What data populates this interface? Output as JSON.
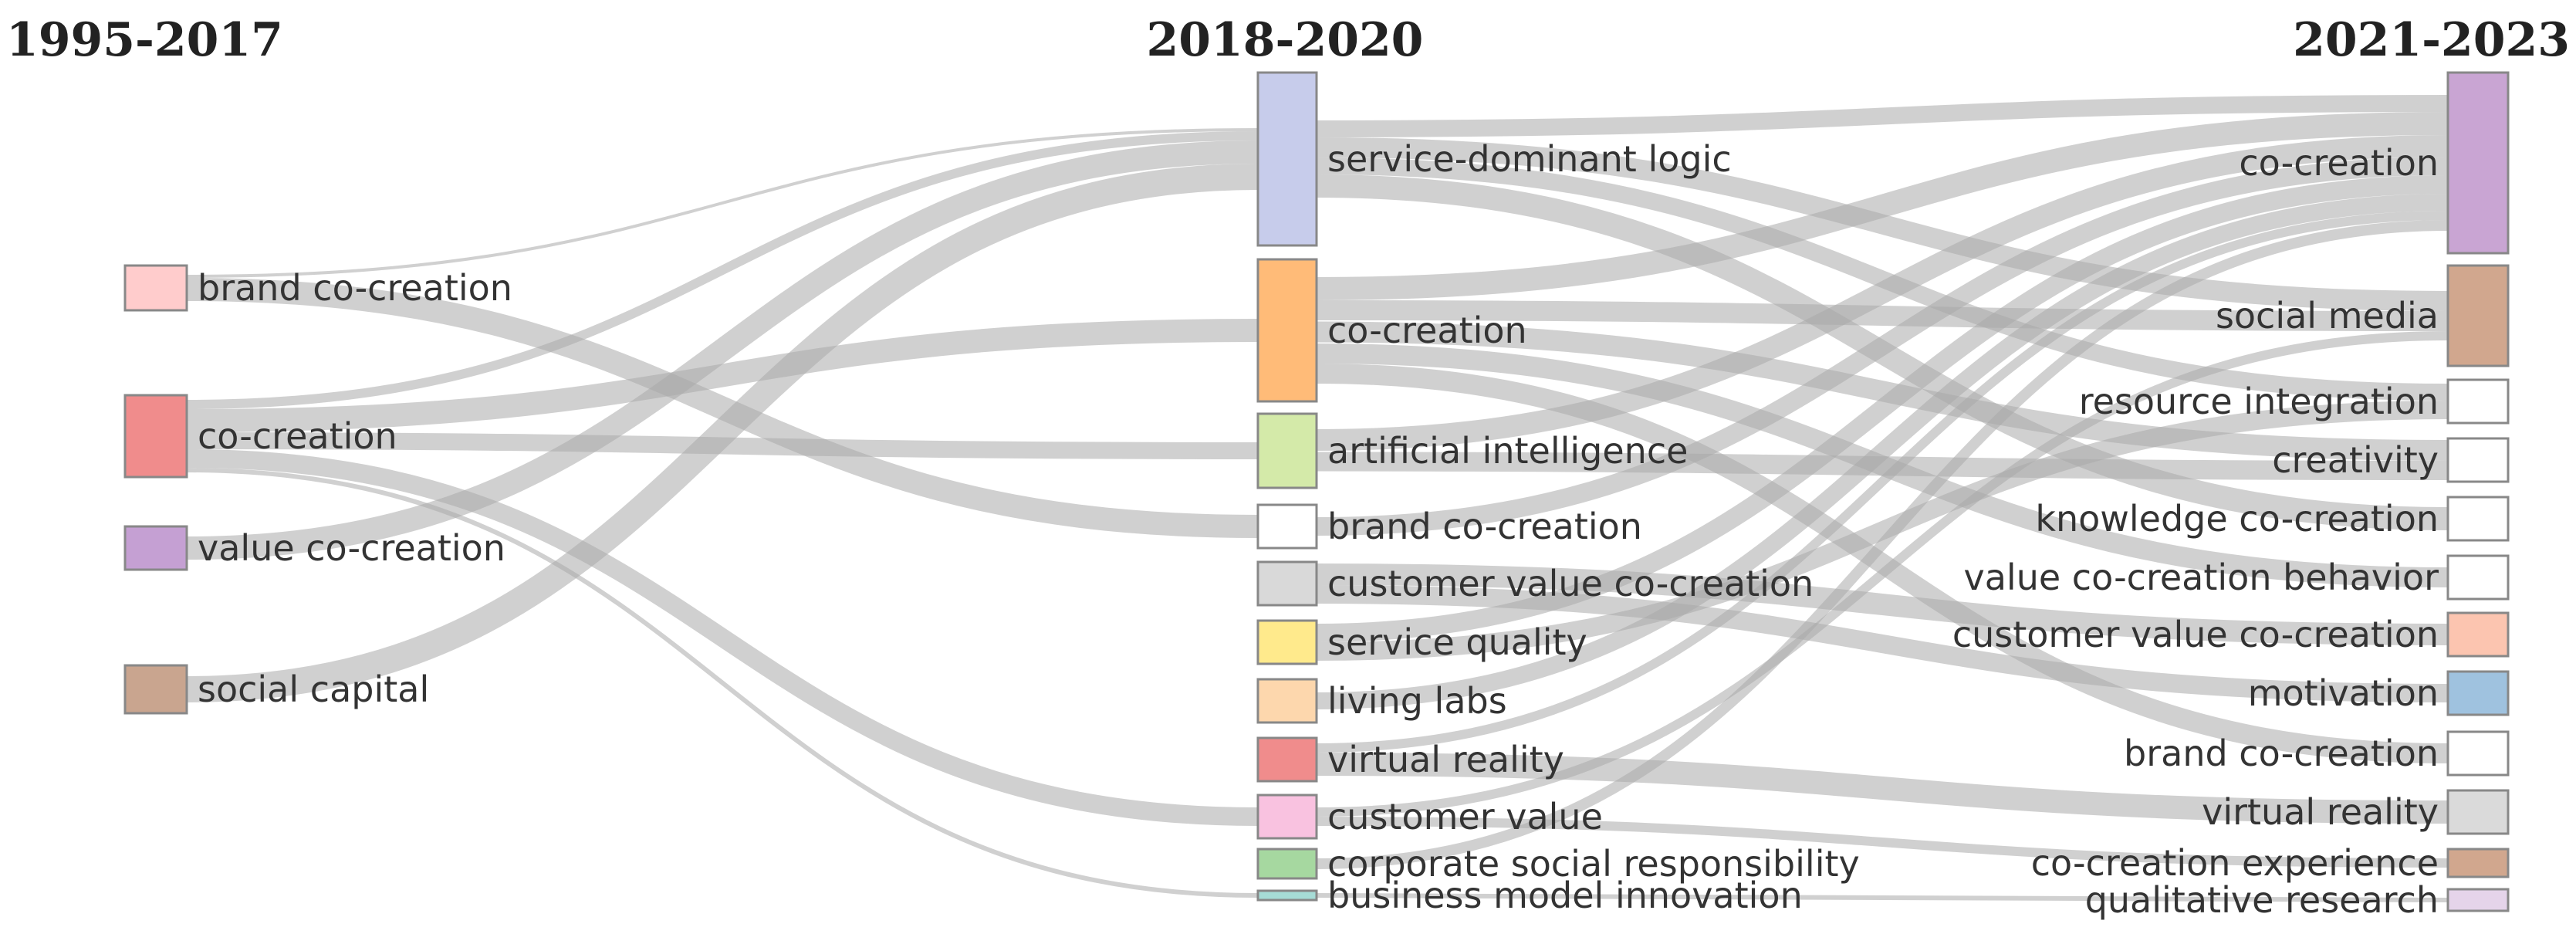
{
  "periods": [
    "1995-2017",
    "2018-2020",
    "2021-2023"
  ],
  "columns": [
    {
      "nodes": [
        {
          "id": "c0-brand",
          "label": "brand co-creation",
          "color": "#ffcccc"
        },
        {
          "id": "c0-cocreation",
          "label": "co-creation",
          "color": "#f08c8c"
        },
        {
          "id": "c0-vcc",
          "label": "value co-creation",
          "color": "#c5a0d3"
        },
        {
          "id": "c0-social",
          "label": "social capital",
          "color": "#c9a58f"
        }
      ]
    },
    {
      "nodes": [
        {
          "id": "c1-sdl",
          "label": "service-dominant logic",
          "color": "#c7cceb"
        },
        {
          "id": "c1-cocreation",
          "label": "co-creation",
          "color": "#ffbb78"
        },
        {
          "id": "c1-ai",
          "label": "artificial intelligence",
          "color": "#d4eaa9"
        },
        {
          "id": "c1-brand",
          "label": "brand co-creation",
          "color": "#ffffff"
        },
        {
          "id": "c1-cvcc",
          "label": "customer value co-creation",
          "color": "#d9d9d9"
        },
        {
          "id": "c1-sq",
          "label": "service quality",
          "color": "#ffea8c"
        },
        {
          "id": "c1-living",
          "label": "living labs",
          "color": "#fdd7ad"
        },
        {
          "id": "c1-vr",
          "label": "virtual reality",
          "color": "#f08c8c"
        },
        {
          "id": "c1-cv",
          "label": "customer value",
          "color": "#f9c2e0"
        },
        {
          "id": "c1-csr",
          "label": "corporate social responsibility",
          "color": "#a6d8a0"
        },
        {
          "id": "c1-bmi",
          "label": "business model innovation",
          "color": "#a6dcd6"
        }
      ]
    },
    {
      "nodes": [
        {
          "id": "c2-cocreation",
          "label": "co-creation",
          "color": "#c9a5d3"
        },
        {
          "id": "c2-sm",
          "label": "social media",
          "color": "#d1a78e"
        },
        {
          "id": "c2-ri",
          "label": "resource integration",
          "color": "#ffffff"
        },
        {
          "id": "c2-creativity",
          "label": "creativity",
          "color": "#ffffff"
        },
        {
          "id": "c2-kcc",
          "label": "knowledge co-creation",
          "color": "#ffffff"
        },
        {
          "id": "c2-vccb",
          "label": "value co-creation behavior",
          "color": "#ffffff"
        },
        {
          "id": "c2-cvcc",
          "label": "customer value co-creation",
          "color": "#fcc5b0"
        },
        {
          "id": "c2-motivation",
          "label": "motivation",
          "color": "#9fc2df"
        },
        {
          "id": "c2-brand",
          "label": "brand co-creation",
          "color": "#ffffff"
        },
        {
          "id": "c2-vr",
          "label": "virtual reality",
          "color": "#dadada"
        },
        {
          "id": "c2-cce",
          "label": "co-creation experience",
          "color": "#d1a78e"
        },
        {
          "id": "c2-qr",
          "label": "qualitative research",
          "color": "#e5d4ea"
        }
      ]
    }
  ],
  "flows": [
    {
      "from": "c0-brand",
      "to": "c1-sdl"
    },
    {
      "from": "c0-brand",
      "to": "c1-brand"
    },
    {
      "from": "c0-cocreation",
      "to": "c1-cocreation"
    },
    {
      "from": "c0-cocreation",
      "to": "c1-ai"
    },
    {
      "from": "c0-cocreation",
      "to": "c1-sdl"
    },
    {
      "from": "c0-cocreation",
      "to": "c1-cv"
    },
    {
      "from": "c0-cocreation",
      "to": "c1-bmi"
    },
    {
      "from": "c0-vcc",
      "to": "c1-sdl"
    },
    {
      "from": "c0-social",
      "to": "c1-sdl"
    },
    {
      "from": "c1-sdl",
      "to": "c2-cocreation"
    },
    {
      "from": "c1-sdl",
      "to": "c2-sm"
    },
    {
      "from": "c1-sdl",
      "to": "c2-kcc"
    },
    {
      "from": "c1-sdl",
      "to": "c2-ri"
    },
    {
      "from": "c1-cocreation",
      "to": "c2-cocreation"
    },
    {
      "from": "c1-cocreation",
      "to": "c2-sm"
    },
    {
      "from": "c1-cocreation",
      "to": "c2-creativity"
    },
    {
      "from": "c1-cocreation",
      "to": "c2-vccb"
    },
    {
      "from": "c1-cocreation",
      "to": "c2-brand"
    },
    {
      "from": "c1-ai",
      "to": "c2-cocreation"
    },
    {
      "from": "c1-ai",
      "to": "c2-creativity"
    },
    {
      "from": "c1-brand",
      "to": "c2-cocreation"
    },
    {
      "from": "c1-cvcc",
      "to": "c2-cvcc"
    },
    {
      "from": "c1-cvcc",
      "to": "c2-motivation"
    },
    {
      "from": "c1-sq",
      "to": "c2-cocreation"
    },
    {
      "from": "c1-sq",
      "to": "c2-ri"
    },
    {
      "from": "c1-living",
      "to": "c2-cocreation"
    },
    {
      "from": "c1-vr",
      "to": "c2-vr"
    },
    {
      "from": "c1-vr",
      "to": "c2-cocreation"
    },
    {
      "from": "c1-cv",
      "to": "c2-sm"
    },
    {
      "from": "c1-cv",
      "to": "c2-cce"
    },
    {
      "from": "c1-csr",
      "to": "c2-cocreation"
    },
    {
      "from": "c1-bmi",
      "to": "c2-qr"
    }
  ]
}
